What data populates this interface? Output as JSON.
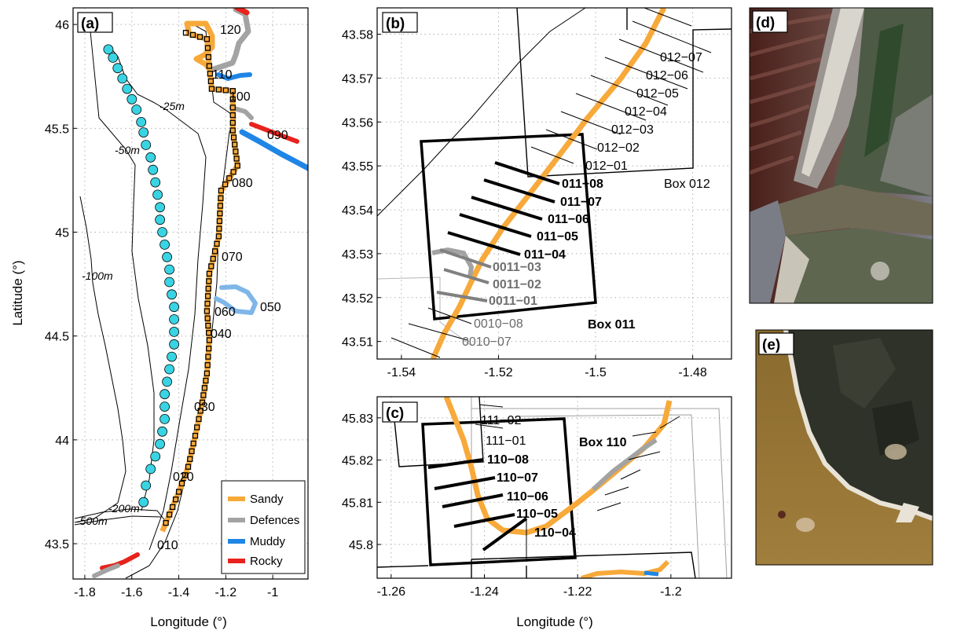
{
  "colors": {
    "sandy": "#f7a93a",
    "defences": "#a3a3a3",
    "muddy": "#1f86e6",
    "rocky": "#e8221c",
    "cyan_points": "#39d4e3"
  },
  "chart_data": [
    {
      "id": "a",
      "type": "scatter",
      "panel_label": "(a)",
      "xlabel": "Longitude (°)",
      "ylabel": "Latitude (°)",
      "xlim": [
        -1.85,
        -0.85
      ],
      "ylim": [
        43.33,
        46.08
      ],
      "xticks": [
        "-1.8",
        "-1.6",
        "-1.4",
        "-1.2",
        "-1"
      ],
      "xtick_values": [
        -1.8,
        -1.6,
        -1.4,
        -1.2,
        -1.0
      ],
      "yticks": [
        "43.5",
        "44",
        "44.5",
        "45",
        "45.5",
        "46"
      ],
      "ytick_values": [
        43.5,
        44.0,
        44.5,
        45.0,
        45.5,
        46.0
      ],
      "grid": true,
      "legend_position": "bottom-right",
      "legend": [
        "Sandy",
        "Defences",
        "Muddy",
        "Rocky"
      ],
      "isobaths": [
        "-25m",
        "-50m",
        "-100m",
        "-200m",
        "-500m"
      ],
      "box_labels": [
        "120",
        "110",
        "100",
        "090",
        "080",
        "070",
        "060",
        "050",
        "040",
        "030",
        "020",
        "010"
      ],
      "coast_track": {
        "lon": [
          -1.37,
          -1.28,
          -1.27,
          -1.26,
          -1.17,
          -1.17,
          -1.17,
          -1.15,
          -1.22,
          -1.23,
          -1.27,
          -1.28,
          -1.27,
          -1.28,
          -1.3,
          -1.33,
          -1.36,
          -1.4,
          -1.44,
          -1.47
        ],
        "lat": [
          45.96,
          45.93,
          45.8,
          45.69,
          45.68,
          45.6,
          45.49,
          45.32,
          45.2,
          44.98,
          44.8,
          44.62,
          44.48,
          44.32,
          44.18,
          44.02,
          43.87,
          43.75,
          43.64,
          43.56
        ]
      },
      "cyan_points": {
        "lon": [
          -1.7,
          -1.68,
          -1.66,
          -1.64,
          -1.62,
          -1.6,
          -1.58,
          -1.56,
          -1.55,
          -1.54,
          -1.52,
          -1.51,
          -1.5,
          -1.49,
          -1.48,
          -1.48,
          -1.47,
          -1.46,
          -1.45,
          -1.44,
          -1.44,
          -1.43,
          -1.42,
          -1.42,
          -1.42,
          -1.42,
          -1.43,
          -1.44,
          -1.45,
          -1.46,
          -1.46,
          -1.46,
          -1.47,
          -1.48,
          -1.5,
          -1.52,
          -1.54,
          -1.55
        ],
        "lat": [
          45.88,
          45.84,
          45.79,
          45.74,
          45.69,
          45.64,
          45.59,
          45.53,
          45.48,
          45.42,
          45.36,
          45.3,
          45.24,
          45.18,
          45.12,
          45.06,
          45.0,
          44.94,
          44.88,
          44.82,
          44.76,
          44.7,
          44.64,
          44.58,
          44.52,
          44.46,
          44.4,
          44.34,
          44.28,
          44.22,
          44.16,
          44.1,
          44.04,
          43.98,
          43.92,
          43.86,
          43.78,
          43.7
        ]
      }
    },
    {
      "id": "b",
      "type": "line",
      "panel_label": "(b)",
      "xlabel": "",
      "ylabel": "",
      "xlim": [
        -1.545,
        -1.472
      ],
      "ylim": [
        43.506,
        43.586
      ],
      "xticks": [
        "-1.54",
        "-1.52",
        "-1.5",
        "-1.48"
      ],
      "xtick_values": [
        -1.54,
        -1.52,
        -1.5,
        -1.48
      ],
      "yticks": [
        "43.51",
        "43.52",
        "43.53",
        "43.54",
        "43.55",
        "43.56",
        "43.57",
        "43.58"
      ],
      "ytick_values": [
        43.51,
        43.52,
        43.53,
        43.54,
        43.55,
        43.56,
        43.57,
        43.58
      ],
      "grid": true,
      "profile_labels_bold": [
        "011−08",
        "011−07",
        "011−06",
        "011−05",
        "011−04"
      ],
      "profile_labels_grey_bold": [
        "0011−03",
        "0011−02",
        "0011−01"
      ],
      "profile_labels": [
        "012−07",
        "012−06",
        "012−05",
        "012−04",
        "012−03",
        "012−02",
        "012−01"
      ],
      "profile_labels_grey": [
        "0010−08",
        "0010−07"
      ],
      "box_labels": [
        "Box 012",
        "Box 011"
      ]
    },
    {
      "id": "c",
      "type": "line",
      "panel_label": "(c)",
      "xlabel": "Longitude (°)",
      "ylabel": "",
      "xlim": [
        -1.263,
        -1.187
      ],
      "ylim": [
        45.792,
        45.835
      ],
      "xticks": [
        "-1.26",
        "-1.24",
        "-1.22",
        "-1.2"
      ],
      "xtick_values": [
        -1.26,
        -1.24,
        -1.22,
        -1.2
      ],
      "yticks": [
        "45.8",
        "45.81",
        "45.82",
        "45.83"
      ],
      "ytick_values": [
        45.8,
        45.81,
        45.82,
        45.83
      ],
      "grid": true,
      "profile_labels_bold": [
        "110−08",
        "110−07",
        "110−06",
        "110−05",
        "110−04"
      ],
      "profile_labels": [
        "111−02",
        "111−01"
      ],
      "box_labels": [
        "Box 110"
      ]
    }
  ],
  "images": [
    {
      "panel_label": "(d)",
      "description_name": "satellite-image-estuary"
    },
    {
      "panel_label": "(e)",
      "description_name": "satellite-image-headland"
    }
  ]
}
